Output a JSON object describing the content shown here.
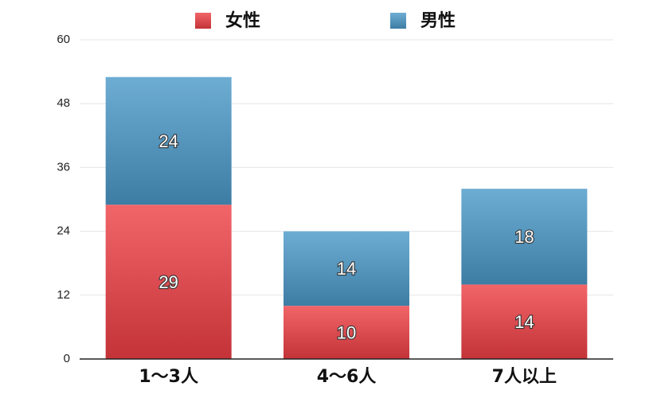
{
  "chart_data": {
    "type": "stacked_bar",
    "categories": [
      "1〜3人",
      "4〜6人",
      "7人以上"
    ],
    "series": [
      {
        "name": "女性",
        "color": "#ee3e44",
        "values": [
          29,
          10,
          14
        ]
      },
      {
        "name": "男性",
        "color": "#4a98c8",
        "values": [
          24,
          14,
          18
        ]
      }
    ],
    "ylim": [
      0,
      60
    ],
    "yticks": [
      0,
      12,
      24,
      36,
      48,
      60
    ],
    "grid": true,
    "legend": "top"
  }
}
